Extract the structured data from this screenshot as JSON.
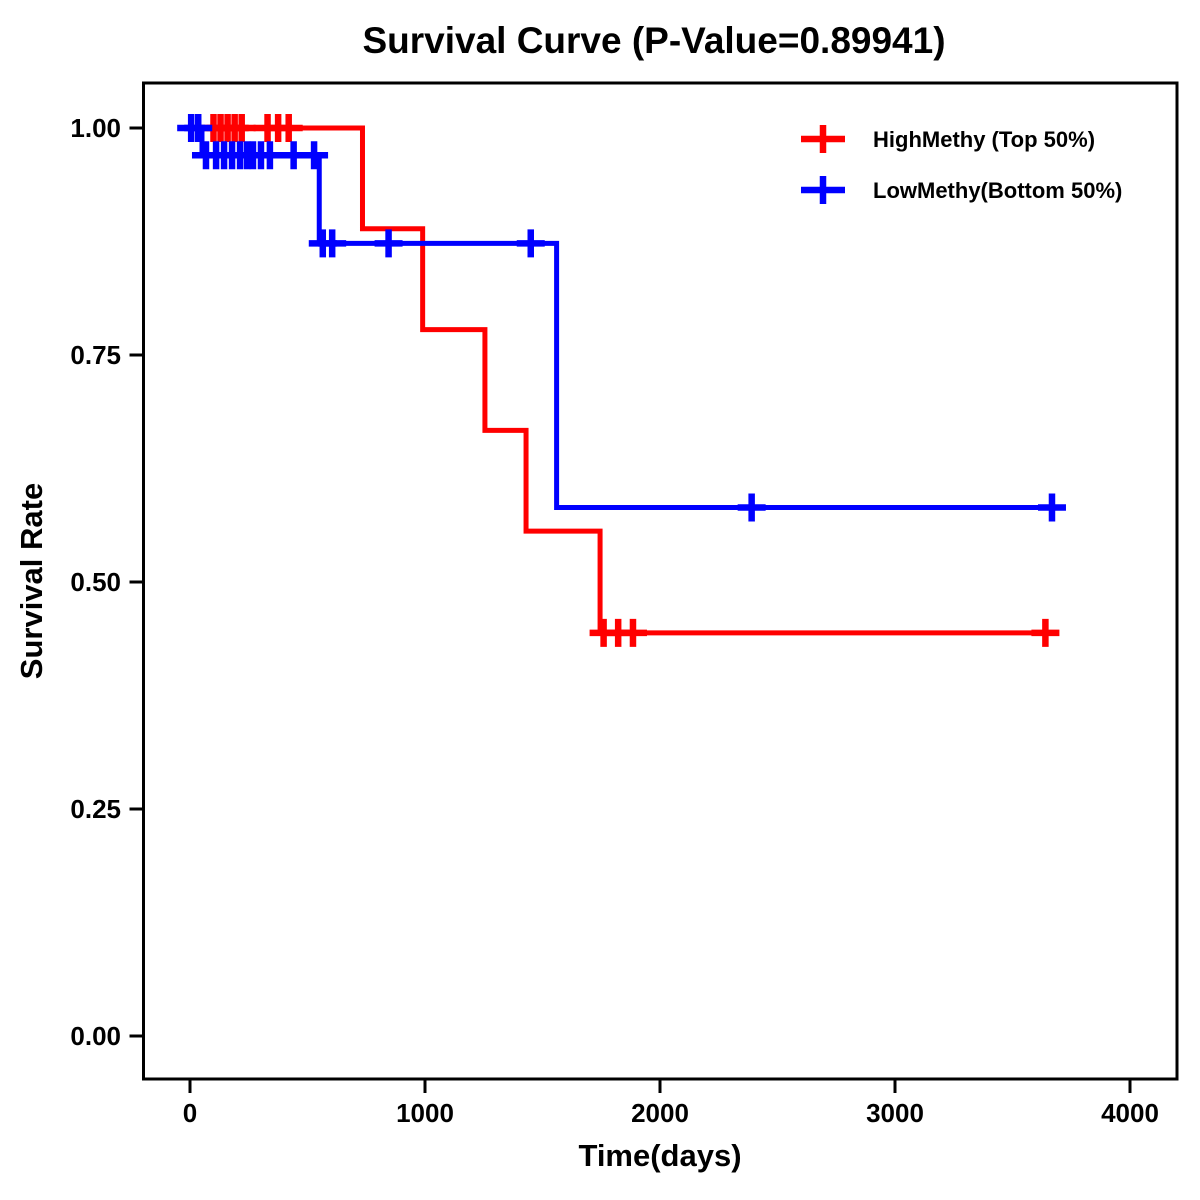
{
  "title": "Survival Curve (P-Value=0.89941)",
  "x_axis": {
    "label": "Time(days)",
    "tick_labels": [
      "0",
      "1000",
      "2000",
      "3000",
      "4000"
    ],
    "tick_values": [
      0,
      1000,
      2000,
      3000,
      4000
    ]
  },
  "y_axis": {
    "label": "Survival Rate",
    "tick_labels": [
      "0.00",
      "0.25",
      "0.50",
      "0.75",
      "1.00"
    ],
    "tick_values": [
      0,
      0.25,
      0.5,
      0.75,
      1.0
    ]
  },
  "legend": {
    "items": [
      {
        "label": "HighMethy (Top 50%)",
        "color": "#ff0000"
      },
      {
        "label": "LowMethy(Bottom 50%)",
        "color": "#0000ff"
      }
    ]
  },
  "chart_data": {
    "type": "line",
    "subtype": "kaplan-meier-step-curve",
    "title": "Survival Curve (P-Value=0.89941)",
    "p_value": "0.89941",
    "xlabel": "Time(days)",
    "ylabel": "Survival Rate",
    "xlim": [
      -200,
      4200
    ],
    "ylim": [
      -0.047,
      1.05
    ],
    "grid": false,
    "legend_position": "top-right",
    "series": [
      {
        "name": "HighMethy (Top 50%)",
        "color": "#ff0000",
        "step_points": [
          [
            0,
            1.0
          ],
          [
            734,
            1.0
          ],
          [
            734,
            0.889
          ],
          [
            990,
            0.889
          ],
          [
            990,
            0.778
          ],
          [
            1255,
            0.778
          ],
          [
            1255,
            0.667
          ],
          [
            1430,
            0.667
          ],
          [
            1430,
            0.556
          ],
          [
            1745,
            0.556
          ],
          [
            1745,
            0.444
          ],
          [
            3690,
            0.444
          ]
        ],
        "censors": [
          [
            100,
            1.0
          ],
          [
            130,
            1.0
          ],
          [
            160,
            1.0
          ],
          [
            190,
            1.0
          ],
          [
            220,
            1.0
          ],
          [
            330,
            1.0
          ],
          [
            375,
            1.0
          ],
          [
            420,
            1.0
          ],
          [
            1760,
            0.444
          ],
          [
            1822,
            0.444
          ],
          [
            1885,
            0.444
          ],
          [
            3640,
            0.444
          ]
        ]
      },
      {
        "name": "LowMethy(Bottom 50%)",
        "color": "#0000ff",
        "step_points": [
          [
            0,
            1.0
          ],
          [
            51,
            1.0
          ],
          [
            51,
            0.97
          ],
          [
            550,
            0.97
          ],
          [
            550,
            0.873
          ],
          [
            1560,
            0.873
          ],
          [
            1560,
            0.582
          ],
          [
            3715,
            0.582
          ]
        ],
        "censors": [
          [
            5,
            1.0
          ],
          [
            35,
            1.0
          ],
          [
            68,
            0.97
          ],
          [
            111,
            0.97
          ],
          [
            145,
            0.97
          ],
          [
            179,
            0.97
          ],
          [
            213,
            0.97
          ],
          [
            243,
            0.97
          ],
          [
            268,
            0.97
          ],
          [
            302,
            0.97
          ],
          [
            340,
            0.97
          ],
          [
            441,
            0.97
          ],
          [
            528,
            0.97
          ],
          [
            565,
            0.873
          ],
          [
            605,
            0.873
          ],
          [
            845,
            0.873
          ],
          [
            1450,
            0.873
          ],
          [
            2390,
            0.582
          ],
          [
            3668,
            0.582
          ]
        ]
      }
    ]
  }
}
